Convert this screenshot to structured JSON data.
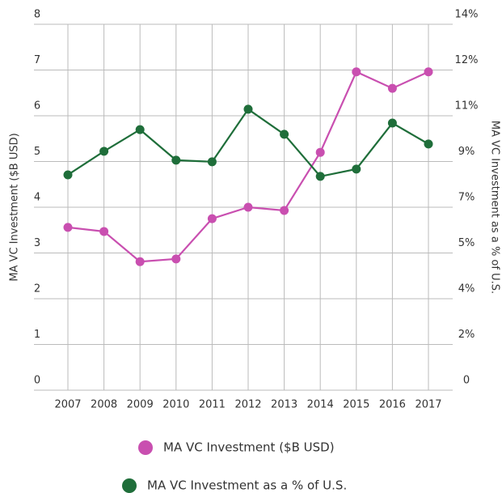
{
  "chart_data": {
    "type": "line",
    "categories": [
      "2007",
      "2008",
      "2009",
      "2010",
      "2011",
      "2012",
      "2013",
      "2014",
      "2015",
      "2016",
      "2017"
    ],
    "series": [
      {
        "name": "MA VC Investment ($B USD)",
        "color": "#c94fb0",
        "values": [
          3.56,
          3.47,
          2.81,
          2.87,
          3.75,
          4.0,
          3.93,
          5.2,
          6.96,
          6.6,
          6.96
        ]
      },
      {
        "name": "MA VC Investment as a % of U.S.",
        "color": "#1f6e3a",
        "axis": "y2",
        "values": [
          8.24,
          9.14,
          9.97,
          8.8,
          8.74,
          10.75,
          9.79,
          8.18,
          8.46,
          10.22,
          9.42
        ]
      }
    ],
    "ylabel": "MA VC Investment ($B USD)",
    "y2label": "MA VC Investment as a % of U.S.",
    "ylim": [
      0,
      8
    ],
    "yticks": [
      0,
      1,
      2,
      3,
      4,
      5,
      6,
      7,
      8
    ],
    "y2lim": [
      0,
      14
    ],
    "y2ticks": [
      0,
      {
        "value": 1.75,
        "label": "2%"
      },
      {
        "value": 3.5,
        "label": "4%"
      },
      {
        "value": 5.25,
        "label": "5%"
      },
      {
        "value": 7,
        "label": "7%"
      },
      {
        "value": 8.75,
        "label": "9%"
      },
      {
        "value": 10.5,
        "label": "11%"
      },
      {
        "value": 12.25,
        "label": "12%"
      },
      {
        "value": 14,
        "label": "14%"
      }
    ],
    "grid": true
  }
}
